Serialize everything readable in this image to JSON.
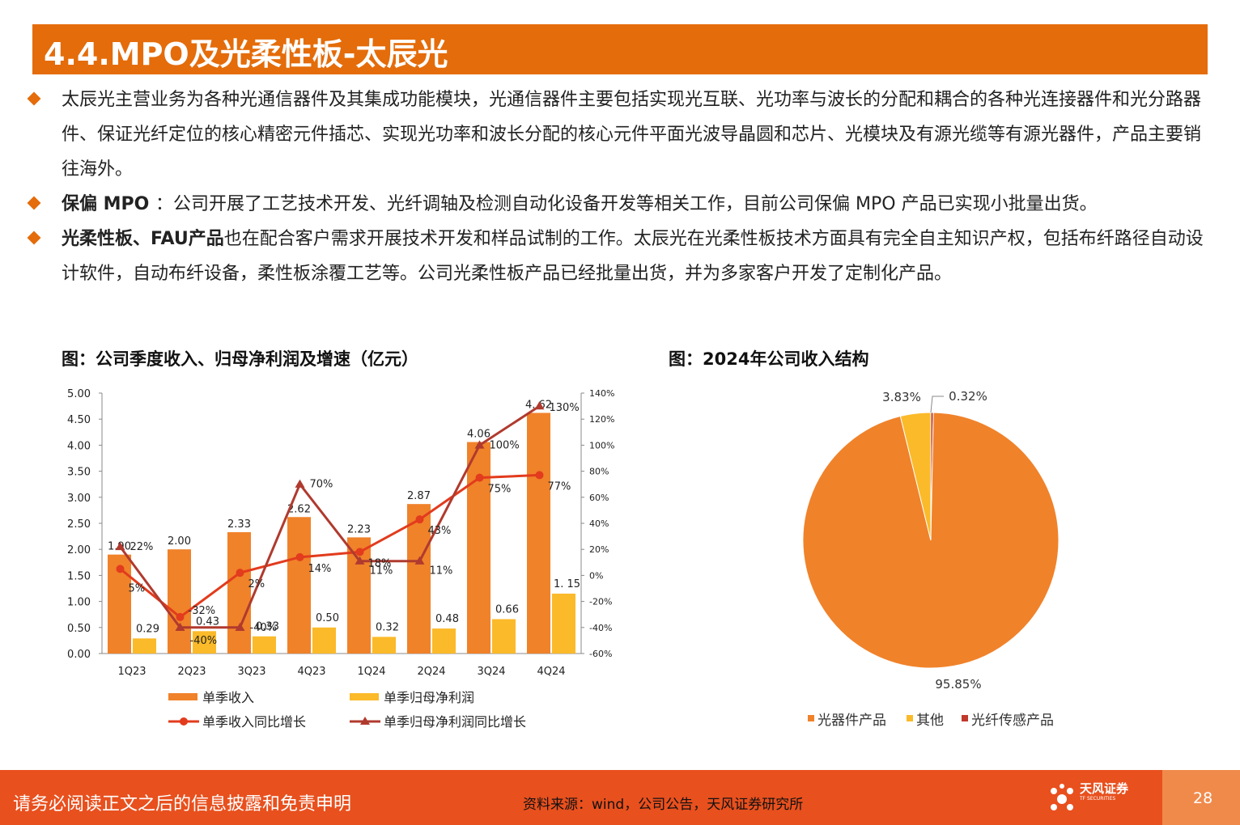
{
  "header": {
    "title": "4.4.MPO及光柔性板-太辰光"
  },
  "bullets": {
    "b1": "太辰光主营业务为各种光通信器件及其集成功能模块，光通信器件主要包括实现光互联、光功率与波长的分配和耦合的各种光连接器件和光分路器件、保证光纤定位的核心精密元件插芯、实现光功率和波长分配的核心元件平面光波导晶圆和芯片、光模块及有源光缆等有源光器件，产品主要销往海外。",
    "b2_bold": "保偏 MPO ",
    "b2_text": "：公司开展了工艺技术开发、光纤调轴及检测自动化设备开发等相关工作，目前公司保偏 MPO 产品已实现小批量出货。",
    "b3_bold": "光柔性板、FAU产品",
    "b3_text": "也在配合客户需求开展技术开发和样品试制的工作。太辰光在光柔性板技术方面具有完全自主知识产权，包括布纤路径自动设计软件，自动布纤设备，柔性板涂覆工艺等。公司光柔性板产品已经批量出货，并为多家客户开发了定制化产品。"
  },
  "figures": {
    "left_title": "图：公司季度收入、归母净利润及增速（亿元）",
    "right_title": "图：2024年公司收入结构"
  },
  "chart_data": [
    {
      "type": "bar",
      "categories": [
        "1Q23",
        "2Q23",
        "3Q23",
        "4Q23",
        "1Q24",
        "2Q24",
        "3Q24",
        "4Q24"
      ],
      "series": [
        {
          "name": "单季收入",
          "kind": "bar",
          "axis": "left",
          "color": "#F0822A",
          "values": [
            1.9,
            2.0,
            2.33,
            2.62,
            2.23,
            2.87,
            4.06,
            4.62
          ],
          "labels": [
            "1.90",
            "2.00",
            "2.33",
            "2.62",
            "2.23",
            "2.87",
            "4.06",
            "4. 62"
          ]
        },
        {
          "name": "单季归母净利润",
          "kind": "bar",
          "axis": "left",
          "color": "#FBBA2A",
          "values": [
            0.29,
            0.43,
            0.33,
            0.5,
            0.32,
            0.48,
            0.66,
            1.15
          ],
          "labels": [
            "0.29",
            "0.43",
            "0.33",
            "0.50",
            "0.32",
            "0.48",
            "0.66",
            "1. 15"
          ]
        },
        {
          "name": "单季收入同比增长",
          "kind": "line",
          "marker": "circle",
          "axis": "right",
          "color": "#E23B1D",
          "values": [
            5,
            -32,
            2,
            14,
            18,
            43,
            75,
            77
          ],
          "labels": [
            "5%",
            "-32%",
            "2%",
            "14%",
            "18%",
            "43%",
            "75%",
            "77%"
          ]
        },
        {
          "name": "单季归母净利润同比增长",
          "kind": "line",
          "marker": "triangle",
          "axis": "right",
          "color": "#B03A2E",
          "values": [
            22,
            -40,
            -40,
            70,
            11,
            11,
            100,
            130
          ],
          "labels": [
            "22%",
            "-40%",
            "-40%",
            "70%",
            "11%",
            "11%",
            "100%",
            "130%"
          ]
        }
      ],
      "ylim_left": [
        0,
        5
      ],
      "yticks_left": [
        "0.00",
        "0.50",
        "1.00",
        "1.50",
        "2.00",
        "2.50",
        "3.00",
        "3.50",
        "4.00",
        "4.50",
        "5.00"
      ],
      "ylim_right": [
        -60,
        140
      ],
      "yticks_right": [
        "-60%",
        "-40%",
        "-20%",
        "0%",
        "20%",
        "40%",
        "60%",
        "80%",
        "100%",
        "120%",
        "140%"
      ],
      "legend": "bottom"
    },
    {
      "type": "pie",
      "labels": [
        "光器件产品",
        "其他",
        "光纤传感产品"
      ],
      "values": [
        95.85,
        3.83,
        0.32
      ],
      "value_labels": [
        "95.85%",
        "3.83%",
        "0.32%"
      ],
      "colors": [
        "#F0822A",
        "#FBBA2A",
        "#C0392B"
      ],
      "legend": "bottom"
    }
  ],
  "footer": {
    "disclaimer": "请务必阅读正文之后的信息披露和免责申明",
    "source": "资料来源：wind，公司公告，天风证券研究所",
    "logo_text": "天风证券",
    "logo_sub": "TF SECURITIES",
    "page": "28"
  }
}
